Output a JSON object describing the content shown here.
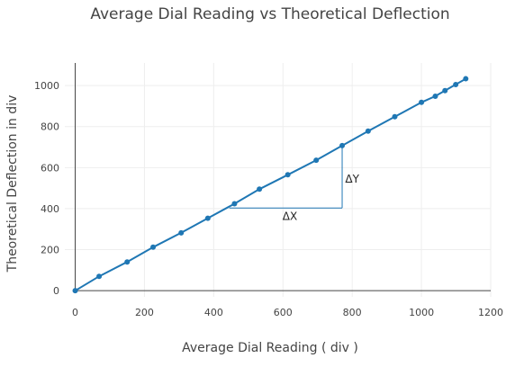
{
  "chart_data": {
    "type": "line",
    "title": "Average Dial Reading vs Theoretical Deflection",
    "xlabel": "Average Dial Reading ( div )",
    "ylabel": "Theoretical Deflection in div",
    "xlim": [
      -30,
      1200
    ],
    "ylim": [
      -30,
      1110
    ],
    "x_ticks": [
      0,
      200,
      400,
      600,
      800,
      1000,
      1200
    ],
    "y_ticks": [
      0,
      200,
      400,
      600,
      800,
      1000
    ],
    "grid": true,
    "legend": "none",
    "colors": {
      "series": "#1f77b4",
      "grid": "#eeeeee",
      "axis": "#444444",
      "text": "#444444"
    },
    "series": [
      {
        "x": [
          0,
          69,
          150,
          225,
          306,
          383,
          460,
          532,
          614,
          696,
          771,
          846,
          923,
          1000,
          1040,
          1068,
          1099,
          1128
        ],
        "y": [
          0,
          70,
          140,
          212,
          282,
          353,
          424,
          495,
          565,
          636,
          707,
          778,
          848,
          918,
          948,
          975,
          1005,
          1033
        ]
      }
    ],
    "annotations": [
      {
        "text": "ΔX",
        "x": 620,
        "y": 363
      },
      {
        "text": "ΔY",
        "x": 800,
        "y": 545
      }
    ],
    "slope_triangle": {
      "x0": 445,
      "x1": 771,
      "y0": 403,
      "y1": 707
    }
  }
}
